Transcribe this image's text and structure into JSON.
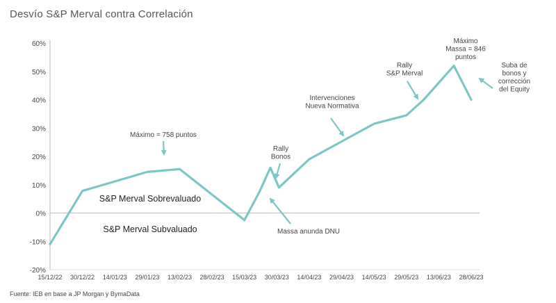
{
  "chart_data": {
    "type": "line",
    "title": "Desvío S&P Merval contra Correlación",
    "source": "Fuente: IEB en base a JP Morgan y BymaData",
    "y_unit": "%",
    "ylim": [
      -20,
      60
    ],
    "y_ticks": [
      "60%",
      "50%",
      "40%",
      "30%",
      "20%",
      "10%",
      "0%",
      "-10%",
      "-20%"
    ],
    "y_tick_values": [
      60,
      50,
      40,
      30,
      20,
      10,
      0,
      -10,
      -20
    ],
    "x_tick_labels": [
      "15/12/22",
      "30/12/22",
      "14/01/23",
      "29/01/23",
      "13/02/23",
      "28/02/23",
      "15/03/23",
      "30/03/23",
      "14/04/23",
      "29/04/23",
      "14/05/23",
      "29/05/23",
      "13/06/23",
      "28/06/23"
    ],
    "series_color": "#7cc7c6",
    "series": [
      {
        "x": [
          "15/12/22",
          "30/12/22",
          "29/01/23",
          "13/02/23",
          "15/03/23",
          "22/03/23",
          "27/03/23",
          "31/03/23",
          "14/04/23",
          "14/05/23",
          "29/05/23",
          "06/06/23",
          "20/06/23",
          "28/06/23"
        ],
        "values": [
          -11,
          7.8,
          14.5,
          15.5,
          -2.5,
          7.5,
          16,
          9,
          19,
          31.5,
          34.5,
          40,
          52,
          40
        ]
      }
    ],
    "annotations": [
      {
        "lines": [
          "Máximo = 758 puntos"
        ],
        "arrow": true
      },
      {
        "lines": [
          "Rally",
          "Bonos"
        ],
        "arrow": true
      },
      {
        "lines": [
          "Intervenciones",
          "Nueva Normativa"
        ],
        "arrow": true
      },
      {
        "lines": [
          "Rally",
          "S&P Merval"
        ],
        "arrow": true
      },
      {
        "lines": [
          "Máximo",
          "Massa = 846",
          "puntos"
        ],
        "arrow": false
      },
      {
        "lines": [
          "Suba de",
          "bonos y",
          "corrección",
          "del Equity"
        ],
        "arrow": true
      },
      {
        "lines": [
          "Massa anunda DNU"
        ],
        "arrow": true
      }
    ],
    "region_labels": [
      "S&P Merval Sobrevaluado",
      "S&P Merval Subvaluado"
    ],
    "grid": false,
    "legend": "none"
  }
}
